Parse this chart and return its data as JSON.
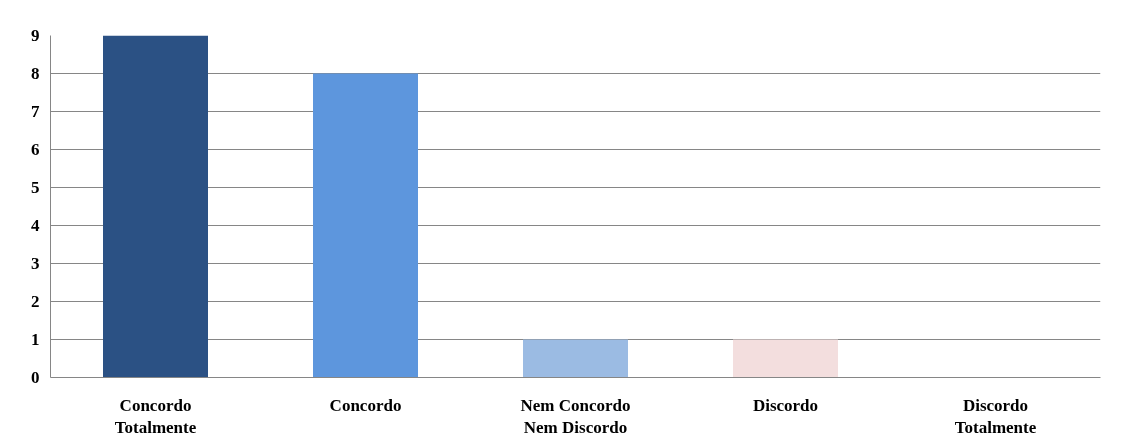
{
  "chart_data": {
    "type": "bar",
    "categories": [
      "Concordo\nTotalmente",
      "Concordo",
      "Nem Concordo\nNem Discordo",
      "Discordo",
      "Discordo\nTotalmente"
    ],
    "values": [
      9,
      8,
      1,
      1,
      0
    ],
    "colors": [
      "#2b5184",
      "#5d96dd",
      "#9bbbe3",
      "#f3dede",
      null
    ],
    "ylim": [
      0,
      9
    ],
    "yticks": [
      0,
      1,
      2,
      3,
      4,
      5,
      6,
      7,
      8,
      9
    ],
    "grid": "y"
  }
}
